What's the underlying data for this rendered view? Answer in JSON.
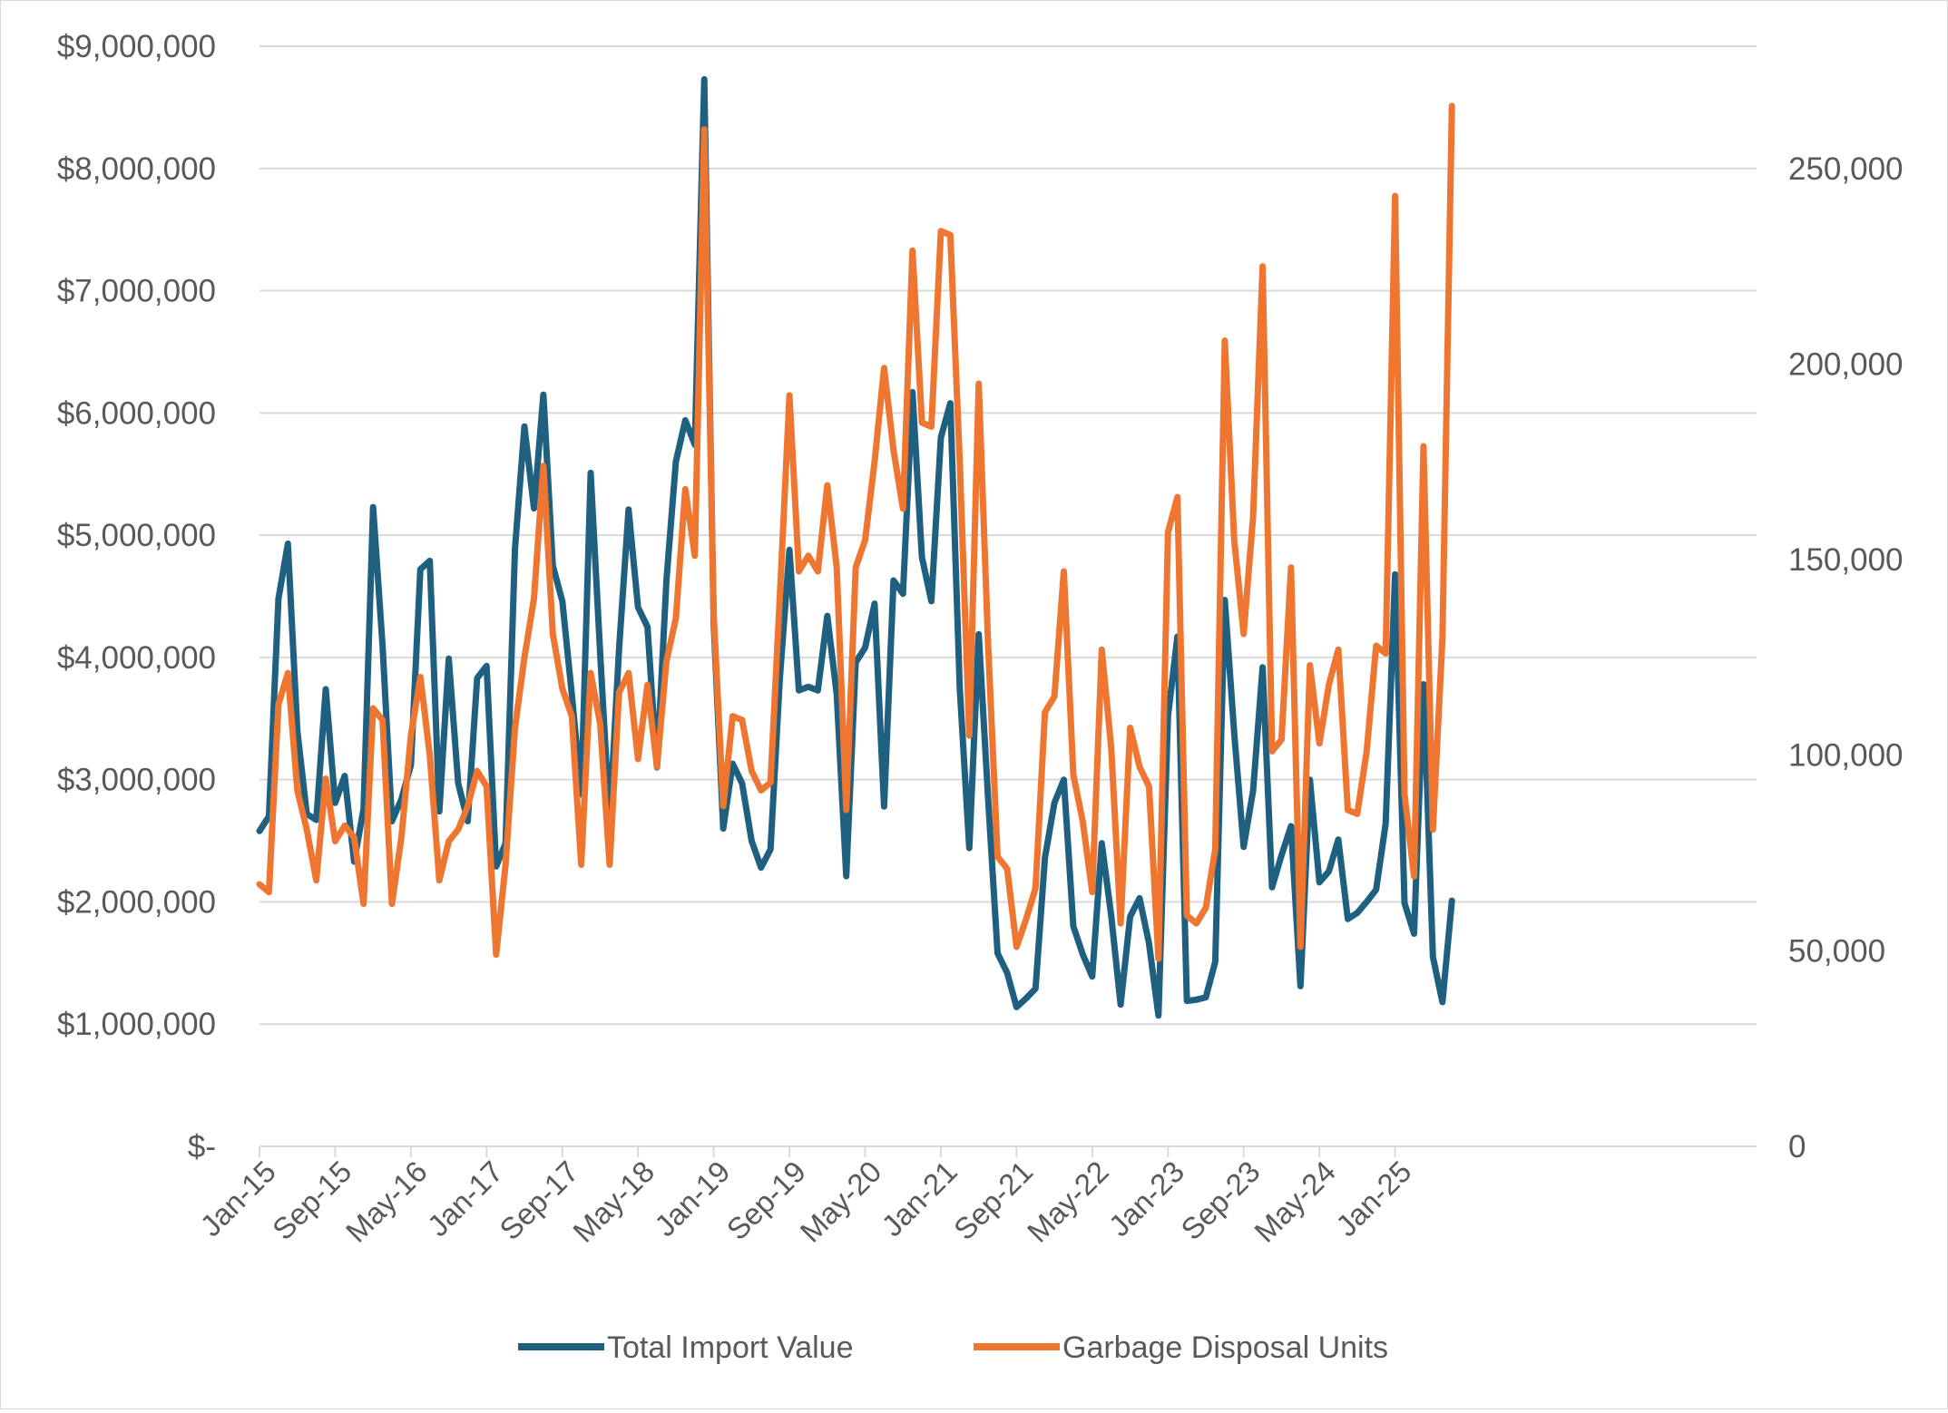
{
  "chart_data": {
    "type": "line",
    "title": "",
    "xlabel": "",
    "ylabel": "",
    "y2label": "",
    "grid": true,
    "legend_position": "bottom",
    "x_tick_labels": [
      "Jan-15",
      "Sep-15",
      "May-16",
      "Jan-17",
      "Sep-17",
      "May-18",
      "Jan-19",
      "Sep-19",
      "May-20",
      "Jan-21",
      "Sep-21",
      "May-22",
      "Jan-23",
      "Sep-23",
      "May-24",
      "Jan-25"
    ],
    "x_start": "Jan-15",
    "x_step": "1 month",
    "ylim_left": [
      0,
      9000000
    ],
    "ylim_right": [
      0,
      281250
    ],
    "y_left_ticks": [
      {
        "value": 0,
        "label": "$-"
      },
      {
        "value": 1000000,
        "label": "$1,000,000"
      },
      {
        "value": 2000000,
        "label": "$2,000,000"
      },
      {
        "value": 3000000,
        "label": "$3,000,000"
      },
      {
        "value": 4000000,
        "label": "$4,000,000"
      },
      {
        "value": 5000000,
        "label": "$5,000,000"
      },
      {
        "value": 6000000,
        "label": "$6,000,000"
      },
      {
        "value": 7000000,
        "label": "$7,000,000"
      },
      {
        "value": 8000000,
        "label": "$8,000,000"
      },
      {
        "value": 9000000,
        "label": "$9,000,000"
      }
    ],
    "y_right_ticks": [
      {
        "value": 0,
        "label": "0"
      },
      {
        "value": 50000,
        "label": "50,000"
      },
      {
        "value": 100000,
        "label": "100,000"
      },
      {
        "value": 150000,
        "label": "150,000"
      },
      {
        "value": 200000,
        "label": "200,000"
      },
      {
        "value": 250000,
        "label": "250,000"
      }
    ],
    "series": [
      {
        "name": "Total Import Value",
        "axis": "left",
        "color": "#1f5f7f",
        "values": [
          2580000,
          2700000,
          4480000,
          4930000,
          3400000,
          2720000,
          2670000,
          3740000,
          2810000,
          3030000,
          2330000,
          2760000,
          5230000,
          4100000,
          2660000,
          2840000,
          3120000,
          4720000,
          4790000,
          2740000,
          3990000,
          2970000,
          2660000,
          3830000,
          3930000,
          2290000,
          2480000,
          4890000,
          5890000,
          5220000,
          6150000,
          4750000,
          4460000,
          3700000,
          2880000,
          5510000,
          4030000,
          2660000,
          4070000,
          5210000,
          4410000,
          4250000,
          3100000,
          4630000,
          5600000,
          5940000,
          5740000,
          8730000,
          4280000,
          2600000,
          3130000,
          2970000,
          2500000,
          2280000,
          2430000,
          3840000,
          4880000,
          3730000,
          3760000,
          3730000,
          4340000,
          3700000,
          2210000,
          3960000,
          4080000,
          4440000,
          2780000,
          4630000,
          4520000,
          6170000,
          4820000,
          4460000,
          5800000,
          6080000,
          3750000,
          2440000,
          4190000,
          2840000,
          1580000,
          1420000,
          1140000,
          1210000,
          1290000,
          2360000,
          2810000,
          3000000,
          1800000,
          1570000,
          1390000,
          2480000,
          1890000,
          1160000,
          1880000,
          2030000,
          1660000,
          1070000,
          3520000,
          4170000,
          1190000,
          1200000,
          1220000,
          1510000,
          4470000,
          3380000,
          2450000,
          2910000,
          3920000,
          2120000,
          2380000,
          2620000,
          1310000,
          3000000,
          2160000,
          2250000,
          2510000,
          1860000,
          1910000,
          2000000,
          2100000,
          2640000,
          4680000,
          1990000,
          1740000,
          3780000,
          1550000,
          1180000,
          2010000
        ]
      },
      {
        "name": "Garbage Disposal Units",
        "axis": "right",
        "color": "#ee7630",
        "values": [
          67000,
          65000,
          113000,
          121000,
          91000,
          81000,
          68000,
          94000,
          78000,
          82000,
          79000,
          62000,
          112000,
          109000,
          62000,
          79000,
          105000,
          120000,
          100000,
          68000,
          78000,
          81000,
          87000,
          96000,
          92000,
          49000,
          72000,
          107000,
          125000,
          140000,
          174000,
          131000,
          117000,
          110000,
          72000,
          121000,
          108000,
          72000,
          116000,
          121000,
          99000,
          118000,
          97000,
          124000,
          135000,
          168000,
          151000,
          260000,
          136000,
          87000,
          110000,
          109000,
          96000,
          91000,
          93000,
          141000,
          192000,
          147000,
          151000,
          147000,
          169000,
          148000,
          86000,
          148000,
          155000,
          175000,
          199000,
          178000,
          163000,
          229000,
          185000,
          184000,
          234000,
          233000,
          175000,
          105000,
          195000,
          128000,
          74000,
          71000,
          51000,
          58000,
          66000,
          111000,
          115000,
          147000,
          95000,
          83000,
          65000,
          127000,
          102000,
          57000,
          107000,
          97000,
          92000,
          48000,
          157000,
          166000,
          59000,
          57000,
          61000,
          76000,
          206000,
          155000,
          131000,
          161000,
          225000,
          101000,
          104000,
          148000,
          51000,
          123000,
          103000,
          118000,
          127000,
          86000,
          85000,
          101000,
          128000,
          126000,
          243000,
          90000,
          69000,
          179000,
          81000,
          130000,
          266000
        ]
      }
    ]
  }
}
